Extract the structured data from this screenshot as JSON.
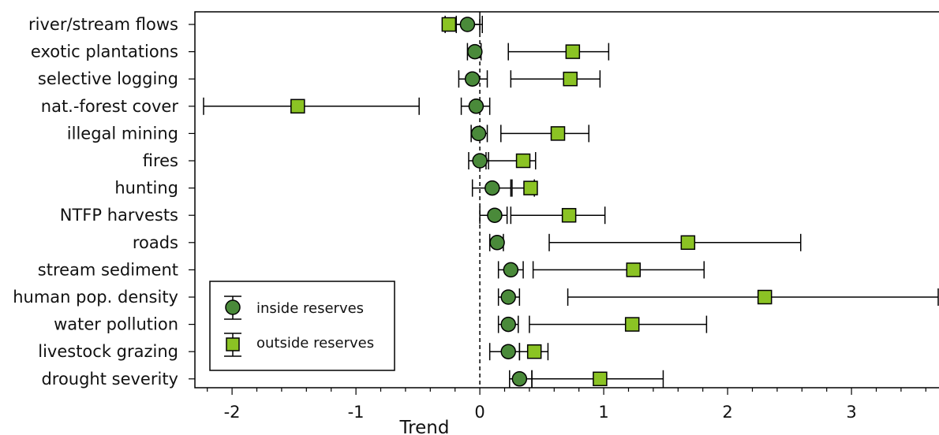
{
  "chart_data": {
    "type": "scatter",
    "orientation": "horizontal",
    "xlabel": "Trend",
    "ylabel": "",
    "xlim": [
      -2.3,
      3.7
    ],
    "xticks": [
      -2,
      -1,
      0,
      1,
      2,
      3
    ],
    "xtick_labels": [
      "-2",
      "-1",
      "0",
      "1",
      "2",
      "3"
    ],
    "reference_line": 0,
    "legend_position": "bottom-left",
    "categories": [
      "river/stream flows",
      "exotic plantations",
      "selective logging",
      "nat.-forest cover",
      "illegal mining",
      "fires",
      "hunting",
      "NTFP harvests",
      "roads",
      "stream sediment",
      "human pop. density",
      "water pollution",
      "livestock grazing",
      "drought severity"
    ],
    "series": [
      {
        "name": "inside reserves",
        "marker": "circle",
        "color": "#4a8a3a",
        "values": [
          -0.1,
          -0.04,
          -0.06,
          -0.03,
          -0.01,
          0.0,
          0.1,
          0.12,
          0.14,
          0.25,
          0.23,
          0.23,
          0.23,
          0.32
        ],
        "err_low": [
          -0.19,
          -0.1,
          -0.17,
          -0.15,
          -0.07,
          -0.09,
          -0.06,
          0.0,
          0.08,
          0.15,
          0.15,
          0.15,
          0.08,
          0.24
        ],
        "err_high": [
          0.02,
          0.01,
          0.06,
          0.08,
          0.06,
          0.07,
          0.25,
          0.22,
          0.19,
          0.35,
          0.32,
          0.31,
          0.32,
          0.42
        ]
      },
      {
        "name": "outside reserves",
        "marker": "square",
        "color": "#8bc324",
        "values": [
          -0.25,
          0.75,
          0.73,
          -1.47,
          0.63,
          0.35,
          0.41,
          0.72,
          1.68,
          1.24,
          2.3,
          1.23,
          0.44,
          0.97
        ],
        "err_low": [
          -0.28,
          0.23,
          0.25,
          -2.23,
          0.17,
          0.05,
          0.26,
          0.25,
          0.56,
          0.43,
          0.71,
          0.4,
          0.32,
          0.42
        ],
        "err_high": [
          0.0,
          1.04,
          0.97,
          -0.49,
          0.88,
          0.45,
          0.44,
          1.01,
          2.59,
          1.81,
          3.7,
          1.83,
          0.55,
          1.48
        ]
      }
    ]
  }
}
